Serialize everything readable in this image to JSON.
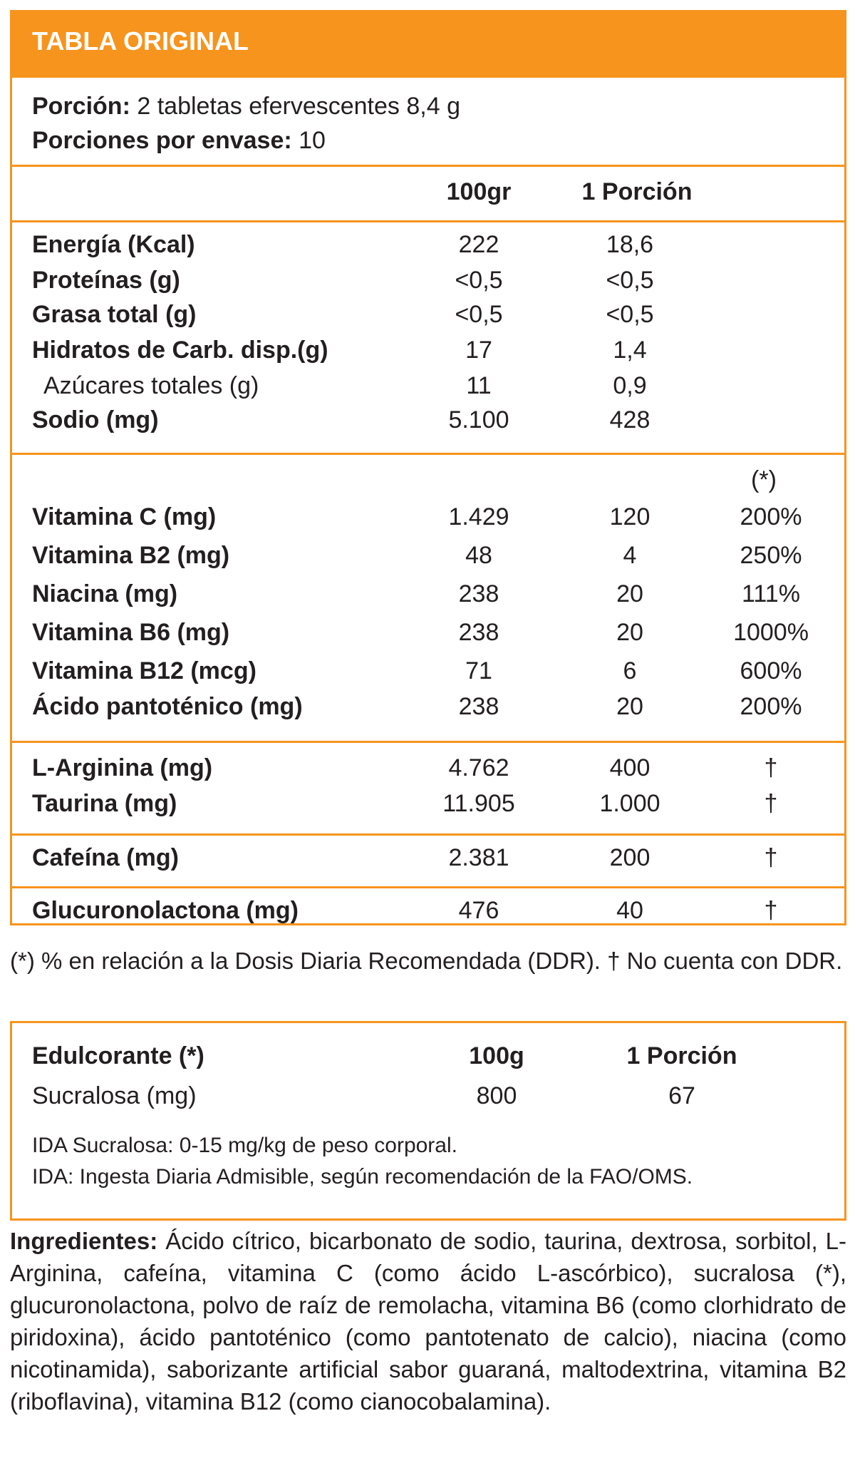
{
  "header": {
    "title": "TABLA ORIGINAL"
  },
  "portion": {
    "label": "Porción:",
    "value": " 2 tabletas efervescentes 8,4 g",
    "per_label": "Porciones por envase:",
    "per_value": " 10"
  },
  "columns": {
    "c100": "100gr",
    "c_portion": "1 Porción",
    "ddr_mark": "(*)"
  },
  "nutrients": [
    {
      "label": "Energía (Kcal)",
      "v100": "222",
      "vp": "18,6"
    },
    {
      "label": "Proteínas (g)",
      "v100": "<0,5",
      "vp": "<0,5"
    },
    {
      "label": "Grasa total (g)",
      "v100": "<0,5",
      "vp": "<0,5"
    },
    {
      "label": "Hidratos de Carb. disp.(g)",
      "v100": "17",
      "vp": "1,4"
    },
    {
      "label": "Azúcares totales (g)",
      "v100": "11",
      "vp": "0,9"
    },
    {
      "label": "Sodio (mg)",
      "v100": "5.100",
      "vp": "428"
    }
  ],
  "vitamins": [
    {
      "label": "Vitamina C (mg)",
      "v100": "1.429",
      "vp": "120",
      "ddr": "200%"
    },
    {
      "label": "Vitamina B2 (mg)",
      "v100": "48",
      "vp": "4",
      "ddr": "250%"
    },
    {
      "label": "Niacina (mg)",
      "v100": "238",
      "vp": "20",
      "ddr": "111%"
    },
    {
      "label": "Vitamina B6 (mg)",
      "v100": "238",
      "vp": "20",
      "ddr": "1000%"
    },
    {
      "label": "Vitamina B12 (mcg)",
      "v100": "71",
      "vp": "6",
      "ddr": "600%"
    },
    {
      "label": "Ácido pantoténico (mg)",
      "v100": "238",
      "vp": "20",
      "ddr": "200%"
    }
  ],
  "others": [
    {
      "label": "L-Arginina (mg)",
      "v100": "4.762",
      "vp": "400",
      "ddr": "†"
    },
    {
      "label": "Taurina (mg)",
      "v100": "11.905",
      "vp": "1.000",
      "ddr": "†"
    },
    {
      "label": "Cafeína (mg)",
      "v100": "2.381",
      "vp": "200",
      "ddr": "†"
    },
    {
      "label": "Glucuronolactona (mg)",
      "v100": "476",
      "vp": "40",
      "ddr": "†"
    }
  ],
  "footnote": "(*) % en relación a la Dosis Diaria Recomendada (DDR). † No cuenta con DDR.",
  "sweetener": {
    "title": "Edulcorante (*)",
    "c100": "100g",
    "c_portion": "1 Porción",
    "row_label": "Sucralosa (mg)",
    "v100": "800",
    "vp": "67",
    "note1": "IDA Sucralosa: 0-15 mg/kg de peso corporal.",
    "note2": "IDA: Ingesta Diaria Admisible, según recomendación de la FAO/OMS."
  },
  "ingredients": {
    "label": "Ingredientes:",
    "text": " Ácido cítrico, bicarbonato de sodio, taurina, dextrosa, sorbitol, L-Arginina, cafeína, vitamina C (como ácido L-ascórbico), sucralosa (*), glucuronolactona, polvo de raíz de remolacha, vitamina B6 (como clorhidrato de piridoxina), ácido pantoténico (como pantotenato de calcio), niacina (como nicotinamida), saborizante artificial sabor guaraná, maltodextrina, vitamina B2 (riboflavina), vitamina B12 (como cianocobalamina)."
  },
  "colors": {
    "accent": "#f7941d",
    "text": "#231f20"
  }
}
